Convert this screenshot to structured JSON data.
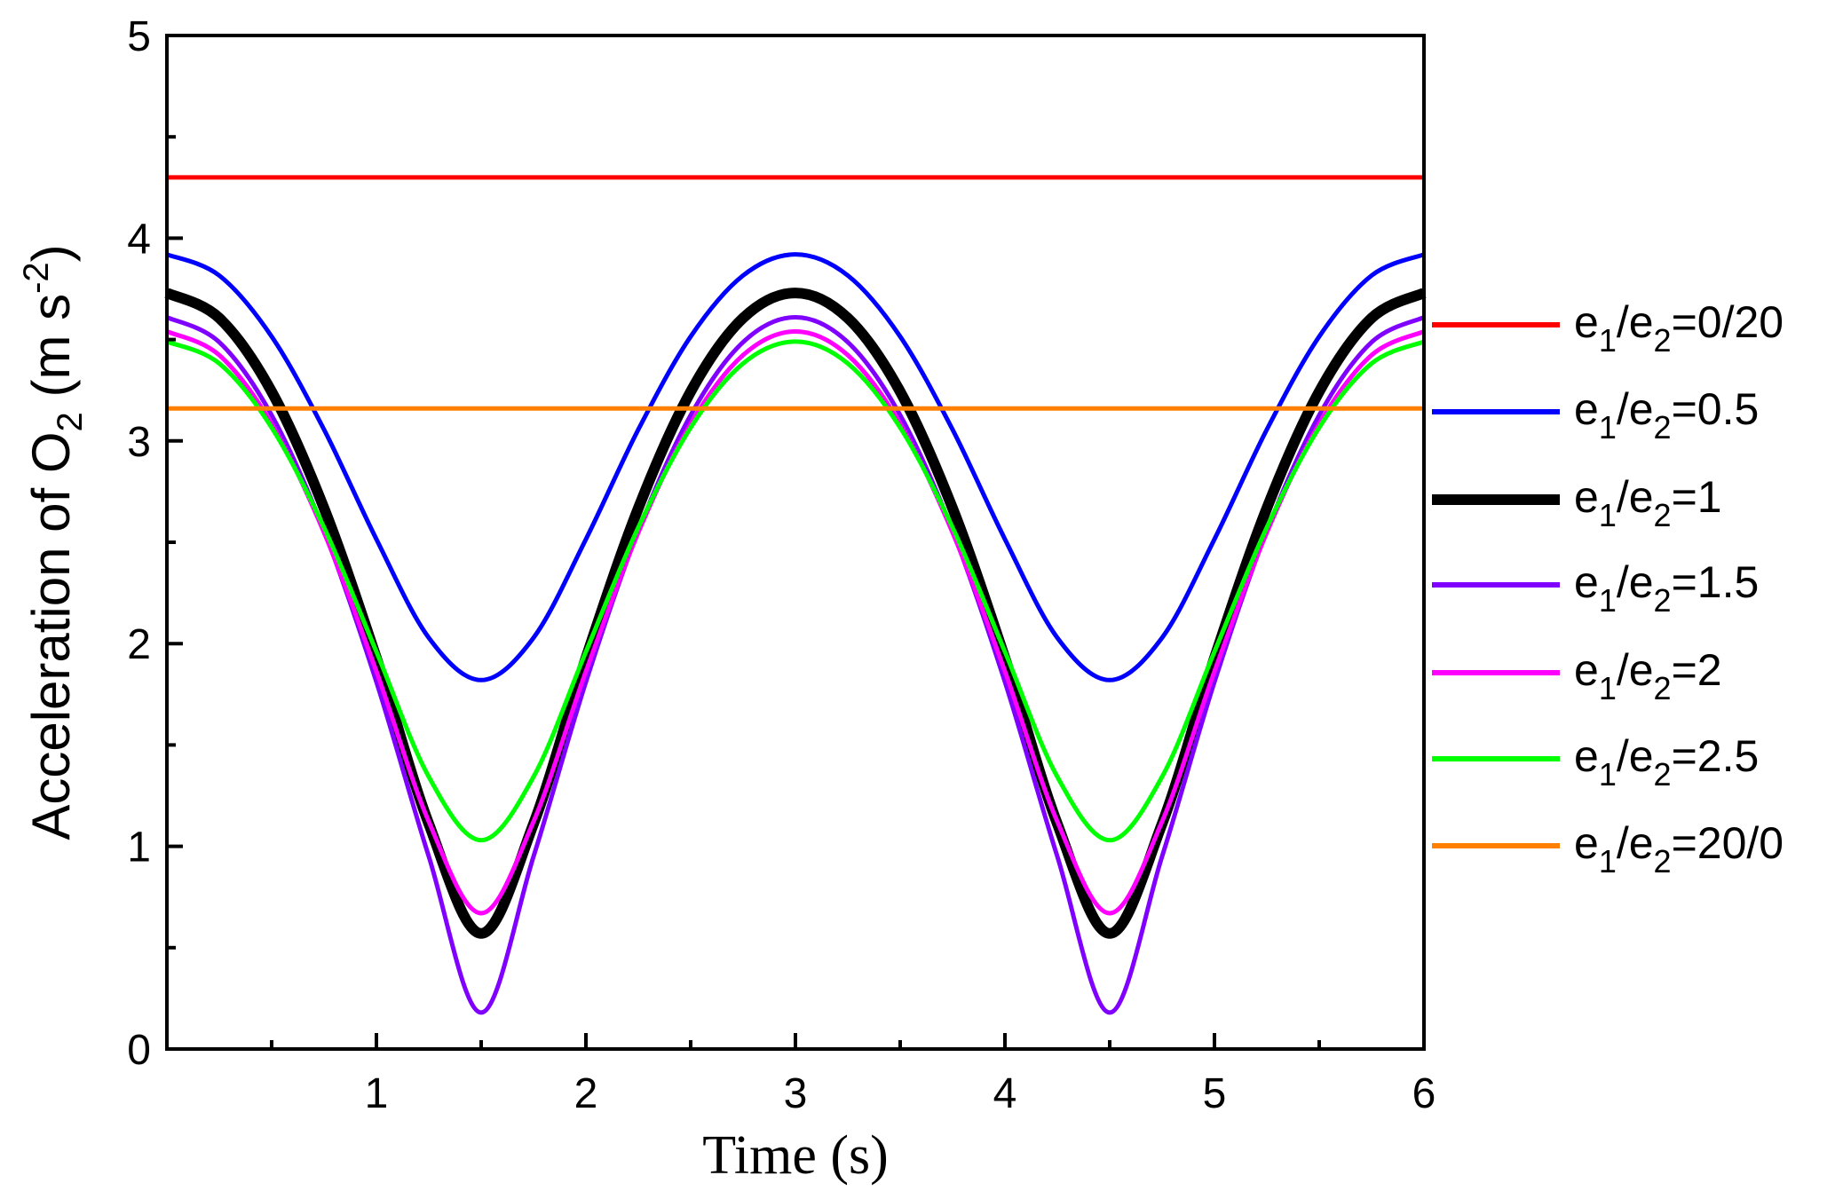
{
  "chart_data": {
    "type": "line",
    "title": "",
    "xlabel": "Time (s)",
    "ylabel_parts": {
      "main": "Acceleration of O",
      "sub": "2",
      "unit_open": " (m s",
      "sup": "-2",
      "unit_close": ")"
    },
    "xlim": [
      0,
      6
    ],
    "ylim": [
      0,
      5
    ],
    "xticks": [
      1,
      2,
      3,
      4,
      5,
      6
    ],
    "yticks": [
      0,
      1,
      2,
      3,
      4,
      5
    ],
    "grid": false,
    "legend_placement": "right-outside",
    "x": [
      0,
      0.25,
      0.5,
      0.75,
      1,
      1.25,
      1.5,
      1.75,
      2,
      2.25,
      2.5,
      2.75,
      3,
      3.25,
      3.5,
      3.75,
      4,
      4.25,
      4.5,
      4.75,
      5,
      5.25,
      5.5,
      5.75,
      6
    ],
    "series": [
      {
        "name": "e1/e2=0/20",
        "label": {
          "a": "e",
          "s1": "1",
          "b": "/e",
          "s2": "2",
          "c": "=0/20"
        },
        "color": "#ff0000",
        "width": "thin",
        "values": [
          4.3,
          4.3,
          4.3,
          4.3,
          4.3,
          4.3,
          4.3,
          4.3,
          4.3,
          4.3,
          4.3,
          4.3,
          4.3,
          4.3,
          4.3,
          4.3,
          4.3,
          4.3,
          4.3,
          4.3,
          4.3,
          4.3,
          4.3,
          4.3,
          4.3
        ]
      },
      {
        "name": "e1/e2=0.5",
        "label": {
          "a": "e",
          "s1": "1",
          "b": "/e",
          "s2": "2",
          "c": "=0.5"
        },
        "color": "#0000ff",
        "width": "thin",
        "values": [
          3.92,
          3.816,
          3.515,
          3.056,
          2.515,
          2.029,
          1.82,
          2.029,
          2.515,
          3.056,
          3.515,
          3.816,
          3.92,
          3.816,
          3.515,
          3.056,
          2.515,
          2.029,
          1.82,
          2.029,
          2.515,
          3.056,
          3.515,
          3.816,
          3.92
        ]
      },
      {
        "name": "e1/e2=1",
        "label": {
          "a": "e",
          "s1": "1",
          "b": "/e",
          "s2": "2",
          "c": "=1"
        },
        "color": "#000000",
        "width": "thick",
        "values": [
          3.73,
          3.606,
          3.243,
          2.668,
          1.929,
          1.111,
          0.57,
          1.111,
          1.929,
          2.668,
          3.243,
          3.606,
          3.73,
          3.606,
          3.243,
          2.668,
          1.929,
          1.111,
          0.57,
          1.111,
          1.929,
          2.668,
          3.243,
          3.606,
          3.73
        ]
      },
      {
        "name": "e1/e2=1.5",
        "label": {
          "a": "e",
          "s1": "1",
          "b": "/e",
          "s2": "2",
          "c": "=1.5"
        },
        "color": "#8000ff",
        "width": "thin",
        "values": [
          3.61,
          3.487,
          3.127,
          2.556,
          1.811,
          0.95,
          0.18,
          0.95,
          1.811,
          2.556,
          3.127,
          3.487,
          3.61,
          3.487,
          3.127,
          2.556,
          1.811,
          0.95,
          0.18,
          0.95,
          1.811,
          2.556,
          3.127,
          3.487,
          3.61
        ]
      },
      {
        "name": "e1/e2=2",
        "label": {
          "a": "e",
          "s1": "1",
          "b": "/e",
          "s2": "2",
          "c": "=2"
        },
        "color": "#ff00ff",
        "width": "thin",
        "values": [
          3.54,
          3.423,
          3.084,
          2.548,
          1.863,
          1.122,
          0.67,
          1.122,
          1.863,
          2.548,
          3.084,
          3.423,
          3.54,
          3.423,
          3.084,
          2.548,
          1.863,
          1.122,
          0.67,
          1.122,
          1.863,
          2.548,
          3.084,
          3.423,
          3.54
        ]
      },
      {
        "name": "e1/e2=2.5",
        "label": {
          "a": "e",
          "s1": "1",
          "b": "/e",
          "s2": "2",
          "c": "=2.5"
        },
        "color": "#00ff00",
        "width": "thin",
        "values": [
          3.49,
          3.382,
          3.066,
          2.573,
          1.96,
          1.343,
          1.03,
          1.343,
          1.96,
          2.573,
          3.066,
          3.382,
          3.49,
          3.382,
          3.066,
          2.573,
          1.96,
          1.343,
          1.03,
          1.343,
          1.96,
          2.573,
          3.066,
          3.382,
          3.49
        ]
      },
      {
        "name": "e1/e2=20/0",
        "label": {
          "a": "e",
          "s1": "1",
          "b": "/e",
          "s2": "2",
          "c": "=20/0"
        },
        "color": "#ff8000",
        "width": "thin",
        "values": [
          3.16,
          3.16,
          3.16,
          3.16,
          3.16,
          3.16,
          3.16,
          3.16,
          3.16,
          3.16,
          3.16,
          3.16,
          3.16,
          3.16,
          3.16,
          3.16,
          3.16,
          3.16,
          3.16,
          3.16,
          3.16,
          3.16,
          3.16,
          3.16,
          3.16
        ]
      }
    ]
  }
}
